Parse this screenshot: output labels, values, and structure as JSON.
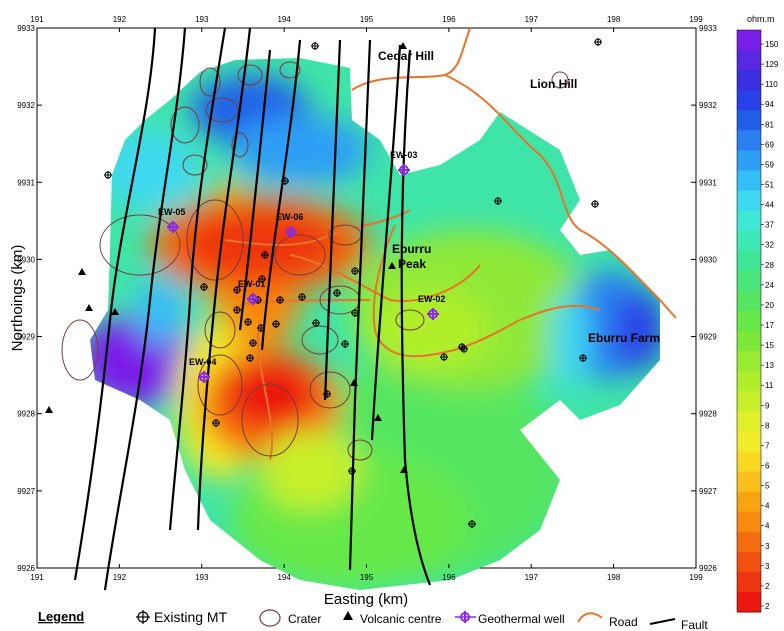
{
  "map": {
    "x_axis_title": "Easting (km)",
    "y_axis_title": "Northoings (km)",
    "x_ticks": [
      "191",
      "192",
      "193",
      "194",
      "195",
      "196",
      "197",
      "198",
      "199"
    ],
    "y_ticks": [
      "9933",
      "9932",
      "9931",
      "9930",
      "9929",
      "9928",
      "9927",
      "9926"
    ],
    "places": [
      {
        "name": "Cedar Hill",
        "bold": true
      },
      {
        "name": "Lion Hill",
        "bold": true
      },
      {
        "name": "Eburru",
        "bold": true
      },
      {
        "name": "Peak",
        "bold": true
      },
      {
        "name": "Eburru Farm",
        "bold": true
      }
    ],
    "wells": [
      "EW-03",
      "EW-05",
      "EW-06",
      "EW-01",
      "EW-02",
      "EW-04"
    ],
    "colors": {
      "road": "#e8732a",
      "fault": "#000000",
      "crater": "#7a3b3b",
      "well": "#8a2be2"
    }
  },
  "colorbar": {
    "unit": "ohm.m",
    "labels": [
      "150",
      "129",
      "110",
      "94",
      "81",
      "69",
      "59",
      "51",
      "44",
      "37",
      "32",
      "28",
      "24",
      "20",
      "17",
      "15",
      "13",
      "11",
      "9",
      "8",
      "7",
      "6",
      "5",
      "4",
      "4",
      "3",
      "3",
      "2",
      "2"
    ],
    "colors": [
      "#7a1fe8",
      "#5a28e0",
      "#3b2ee0",
      "#2a40e8",
      "#2060e8",
      "#2b7ff0",
      "#2f9ef5",
      "#35bdf5",
      "#3fd8f0",
      "#3ee8d5",
      "#3ee8b5",
      "#40e596",
      "#4ae57a",
      "#55e560",
      "#66e848",
      "#7ee83a",
      "#98ea32",
      "#b0ee2c",
      "#c8f02a",
      "#e0f02a",
      "#f0ec28",
      "#f8d820",
      "#f8c018",
      "#f8a410",
      "#f88a10",
      "#f46e10",
      "#f05010",
      "#ee3410",
      "#ec1810"
    ]
  },
  "legend": {
    "title": "Legend",
    "items": [
      "Existing MT",
      "Crater",
      "Volcanic centre",
      "Geothermal well",
      "Road",
      "Fault"
    ]
  }
}
